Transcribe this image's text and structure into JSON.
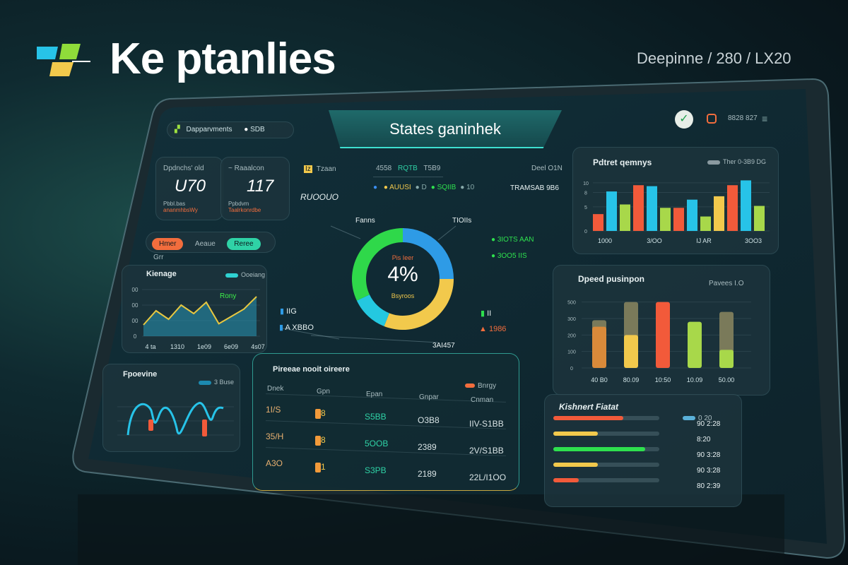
{
  "brand": {
    "title": "Ke ptanlies",
    "logo_colors": [
      "#27c3e8",
      "#8fdc3a",
      "#f2c94c"
    ]
  },
  "crumbs": [
    "Deepinne",
    "280",
    "LX20"
  ],
  "header": {
    "app_label": "Dapparvments",
    "status": "SDB",
    "title": "States ganinhek",
    "user_text": "8828 827"
  },
  "kpis": [
    {
      "label": "Dpdnchs' old",
      "value": "U70",
      "sub": "Pbbl.bas",
      "note": "ananmhbsWy"
    },
    {
      "label": "~ Raaalcon",
      "value": "117",
      "sub": "Ppbdvm",
      "note": "Taalrkonrdbe"
    }
  ],
  "filter_tabs": [
    {
      "label": "Hmer",
      "color": "#f26d3d"
    },
    {
      "label": "Aeaue"
    },
    {
      "label": "Reree",
      "color": "#2fd2a6"
    },
    {
      "label": "Grr"
    }
  ],
  "area_chart": {
    "title": "Kienage",
    "legend": "Ooeiang",
    "annotation": "Rony",
    "yticks": [
      "0",
      "00",
      "00",
      "00"
    ],
    "xticks": [
      "4 ta",
      "1310",
      "1e09",
      "6e09",
      "4s07"
    ],
    "values": [
      20,
      45,
      30,
      55,
      40,
      60,
      22,
      35,
      48,
      70
    ]
  },
  "wave_chart": {
    "title": "Fpoevine",
    "legend": "3 Buse"
  },
  "center": {
    "left_label": "Tzaan",
    "left_value": "RUOOUO",
    "legend_top": [
      "4558",
      "RQTB",
      "T5B9"
    ],
    "legend_dots": [
      {
        "label": "",
        "color": "#3a8ef0"
      },
      {
        "label": "AUUSI",
        "color": "#f2c94c"
      },
      {
        "label": "D",
        "color": "#8aa"
      },
      {
        "label": "SQIIB",
        "color": "#2ee04e"
      },
      {
        "label": "10",
        "color": "#8aa"
      }
    ],
    "right_label": "Deel O1N",
    "right_value": "TRAMSAB 9B6"
  },
  "chart_data": {
    "type": "pie",
    "title": "",
    "center_value": "4%",
    "center_top": "Pis Ieer",
    "center_bottom": "Bsyroos",
    "slices": [
      {
        "label": "TIOIIs",
        "value": 25,
        "color": "#2e9be6"
      },
      {
        "label": "3AI457",
        "value": 31,
        "color": "#f2c94c"
      },
      {
        "label": "A XBBO",
        "value": 12,
        "color": "#24c8e0"
      },
      {
        "label": "Fanns",
        "value": 32,
        "color": "#2fd84a"
      }
    ],
    "annotations": [
      {
        "label": "3IOTS AAN",
        "color": "#2ee04e"
      },
      {
        "label": "3OO5 IIS",
        "color": "#2ee04e"
      },
      {
        "label": "IIG",
        "color": "#2e9be6"
      },
      {
        "label": "II",
        "color": "#2ee04e"
      },
      {
        "label": "1986",
        "color": "#f26d3d"
      }
    ]
  },
  "table": {
    "title": "Pireeae nooit oireere",
    "legend": "Bnrgy",
    "columns": [
      "Dnek",
      "Gpn",
      "Epan",
      "Gnpar",
      "Cnman"
    ],
    "rows": [
      [
        "1I/S",
        "8",
        "S5BB",
        "O3B8",
        "IIV-S1BB"
      ],
      [
        "35/H",
        "8",
        "5OOB",
        "2389",
        "2V/S1BB"
      ],
      [
        "A3O",
        "1",
        "S3PB",
        "2189",
        "22L/I1OO"
      ]
    ]
  },
  "bar_chart": {
    "title": "Pdtret qemnys",
    "legend": "Ther 0-3B9 DG",
    "yticks": [
      "0",
      "5",
      "8",
      "10"
    ],
    "xticks": [
      "1000",
      "3/OO",
      "IJ AR",
      "3OO3"
    ],
    "bars": [
      {
        "v": 3.5,
        "c": "#f25a3a"
      },
      {
        "v": 8.2,
        "c": "#27c3e8"
      },
      {
        "v": 5.5,
        "c": "#a8d84a"
      },
      {
        "v": 9.5,
        "c": "#f25a3a"
      },
      {
        "v": 9.3,
        "c": "#27c3e8"
      },
      {
        "v": 4.8,
        "c": "#a8d84a"
      },
      {
        "v": 4.8,
        "c": "#f25a3a"
      },
      {
        "v": 6.5,
        "c": "#27c3e8"
      },
      {
        "v": 3.0,
        "c": "#a8d84a"
      },
      {
        "v": 7.2,
        "c": "#f2c94c"
      },
      {
        "v": 9.5,
        "c": "#f25a3a"
      },
      {
        "v": 10.5,
        "c": "#27c3e8"
      },
      {
        "v": 5.2,
        "c": "#a8d84a"
      }
    ]
  },
  "stack_chart": {
    "title": "Dpeed pusinpon",
    "legend": "Pavees I.O",
    "yticks": [
      "0",
      "100",
      "200",
      "300",
      "500"
    ],
    "xticks": [
      "40 B0",
      "80.09",
      "10:50",
      "10.09",
      "50.00"
    ],
    "bars": [
      {
        "v": 250,
        "top": 40,
        "c": "#d98a3a"
      },
      {
        "v": 200,
        "top": 200,
        "c": "#f2c94c"
      },
      {
        "v": 400,
        "top": 0,
        "c": "#f25a3a"
      },
      {
        "v": 280,
        "top": 0,
        "c": "#a8d84a"
      },
      {
        "v": 110,
        "top": 230,
        "c": "#a8d84a"
      }
    ]
  },
  "progress": {
    "title": "Kishnert Fiatat",
    "legend": "0 20",
    "rows": [
      {
        "value": "90 2:28",
        "fill": 0.55,
        "color": "#f25a3a"
      },
      {
        "value": "8:20",
        "fill": 0.35,
        "color": "#f2c94c"
      },
      {
        "value": "90 3:28",
        "fill": 0.72,
        "color": "#2ee04e"
      },
      {
        "value": "90 3:28",
        "fill": 0.35,
        "color": "#f2c94c"
      },
      {
        "value": "80 2:39",
        "fill": 0.2,
        "color": "#f25a3a"
      }
    ]
  }
}
